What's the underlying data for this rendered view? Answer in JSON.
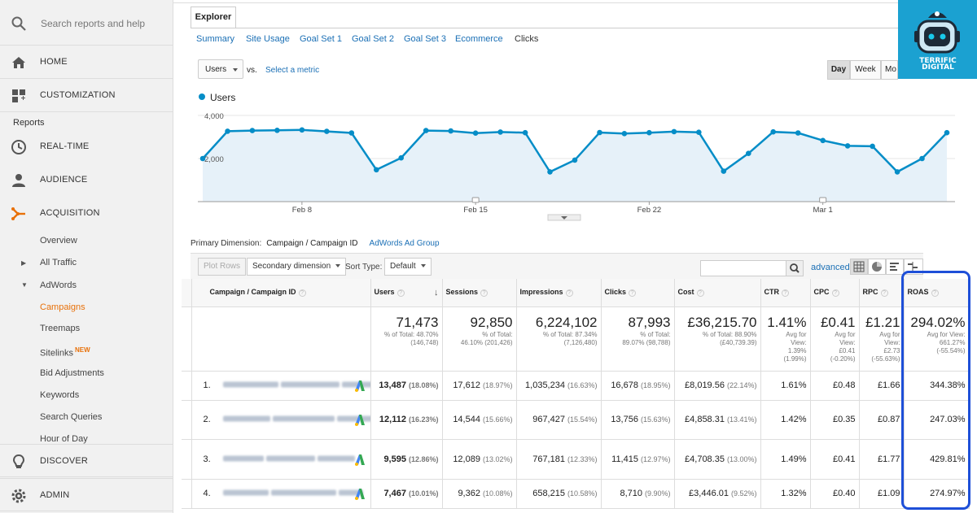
{
  "sidebar": {
    "search_placeholder": "Search reports and help",
    "home": "HOME",
    "customization": "CUSTOMIZATION",
    "reports_label": "Reports",
    "realtime": "REAL-TIME",
    "audience": "AUDIENCE",
    "acquisition": "ACQUISITION",
    "sub": {
      "overview": "Overview",
      "all_traffic": "All Traffic",
      "adwords": "AdWords",
      "campaigns": "Campaigns",
      "treemaps": "Treemaps",
      "sitelinks": "Sitelinks",
      "sitelinks_badge": "NEW",
      "bid_adjustments": "Bid Adjustments",
      "keywords": "Keywords",
      "search_queries": "Search Queries",
      "hour_of_day": "Hour of Day"
    },
    "discover": "DISCOVER",
    "admin": "ADMIN"
  },
  "explorer": {
    "tab": "Explorer",
    "subtabs": [
      "Summary",
      "Site Usage",
      "Goal Set 1",
      "Goal Set 2",
      "Goal Set 3",
      "Ecommerce",
      "Clicks"
    ],
    "metric_select": "Users",
    "vs": "vs.",
    "select_metric": "Select a metric",
    "periods": [
      "Day",
      "Week",
      "Mo"
    ]
  },
  "chart_data": {
    "type": "area",
    "series": [
      {
        "name": "Users",
        "values": [
          2000,
          3270,
          3300,
          3310,
          3330,
          3260,
          3190,
          1480,
          2030,
          3300,
          3280,
          3180,
          3230,
          3200,
          1380,
          1930,
          3210,
          3160,
          3200,
          3250,
          3220,
          1410,
          2240,
          3240,
          3190,
          2840,
          2590,
          2570,
          1380,
          2000,
          3200
        ]
      }
    ],
    "yticks": [
      "4,000",
      "2,000"
    ],
    "ylim": [
      0,
      4200
    ],
    "xlabels": [
      "Feb 8",
      "Feb 15",
      "Feb 22",
      "Mar 1"
    ],
    "color": "#058dc7",
    "fill": "#e6f1f9"
  },
  "table_controls": {
    "primary_dimension_label": "Primary Dimension:",
    "primary_dimension": "Campaign / Campaign ID",
    "alt_dimension": "AdWords Ad Group",
    "plot_rows": "Plot Rows",
    "secondary_dimension": "Secondary dimension",
    "sort_type_label": "Sort Type:",
    "sort_type": "Default",
    "advanced": "advanced"
  },
  "table": {
    "headers": [
      "Campaign / Campaign ID",
      "Users",
      "Sessions",
      "Impressions",
      "Clicks",
      "Cost",
      "CTR",
      "CPC",
      "RPC",
      "ROAS"
    ],
    "totals": [
      {
        "big": "71,473",
        "sub": [
          "% of Total: 48.70%",
          "(146,748)"
        ]
      },
      {
        "big": "92,850",
        "sub": [
          "% of Total:",
          "46.10% (201,426)"
        ]
      },
      {
        "big": "6,224,102",
        "sub": [
          "% of Total: 87.34%",
          "(7,126,480)"
        ]
      },
      {
        "big": "87,993",
        "sub": [
          "% of Total:",
          "89.07% (98,788)"
        ]
      },
      {
        "big": "£36,215.70",
        "sub": [
          "% of Total: 88.90%",
          "(£40,739.39)"
        ]
      },
      {
        "big": "1.41%",
        "sub": [
          "Avg for",
          "View:",
          "1.39%",
          "(1.99%)"
        ]
      },
      {
        "big": "£0.41",
        "sub": [
          "Avg for",
          "View:",
          "£0.41",
          "(-0.20%)"
        ]
      },
      {
        "big": "£1.21",
        "sub": [
          "Avg for",
          "View:",
          "£2.73",
          "(-55.63%)"
        ]
      },
      {
        "big": "294.02%",
        "sub": [
          "Avg for View:",
          "661.27%",
          "(-55.54%)"
        ]
      }
    ],
    "rows": [
      {
        "idx": "1.",
        "users": "13,487",
        "users_pct": "(18.08%)",
        "sessions": "17,612",
        "sessions_pct": "(18.97%)",
        "impr": "1,035,234",
        "impr_pct": "(16.63%)",
        "clicks": "16,678",
        "clicks_pct": "(18.95%)",
        "cost": "£8,019.56",
        "cost_pct": "(22.14%)",
        "ctr": "1.61%",
        "cpc": "£0.48",
        "rpc": "£1.66",
        "roas": "344.38%"
      },
      {
        "idx": "2.",
        "users": "12,112",
        "users_pct": "(16.23%)",
        "sessions": "14,544",
        "sessions_pct": "(15.66%)",
        "impr": "967,427",
        "impr_pct": "(15.54%)",
        "clicks": "13,756",
        "clicks_pct": "(15.63%)",
        "cost": "£4,858.31",
        "cost_pct": "(13.41%)",
        "ctr": "1.42%",
        "cpc": "£0.35",
        "rpc": "£0.87",
        "roas": "247.03%"
      },
      {
        "idx": "3.",
        "users": "9,595",
        "users_pct": "(12.86%)",
        "sessions": "12,089",
        "sessions_pct": "(13.02%)",
        "impr": "767,181",
        "impr_pct": "(12.33%)",
        "clicks": "11,415",
        "clicks_pct": "(12.97%)",
        "cost": "£4,708.35",
        "cost_pct": "(13.00%)",
        "ctr": "1.49%",
        "cpc": "£0.41",
        "rpc": "£1.77",
        "roas": "429.81%"
      },
      {
        "idx": "4.",
        "users": "7,467",
        "users_pct": "(10.01%)",
        "sessions": "9,362",
        "sessions_pct": "(10.08%)",
        "impr": "658,215",
        "impr_pct": "(10.58%)",
        "clicks": "8,710",
        "clicks_pct": "(9.90%)",
        "cost": "£3,446.01",
        "cost_pct": "(9.52%)",
        "ctr": "1.32%",
        "cpc": "£0.40",
        "rpc": "£1.09",
        "roas": "274.97%"
      }
    ]
  },
  "logo": {
    "text": "TERRIFIC DIGITAL"
  },
  "colors": {
    "accent": "#e8710a",
    "link": "#1a6fb5",
    "chart": "#058dc7",
    "highlight": "#1e4fd8"
  }
}
